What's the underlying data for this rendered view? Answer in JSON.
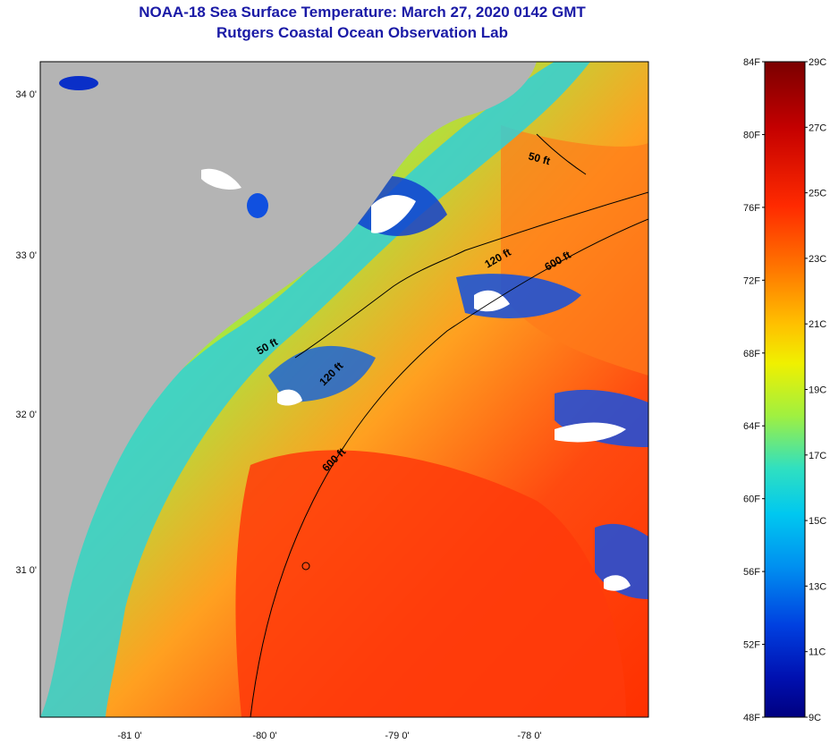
{
  "title": "NOAA-18 Sea Surface Temperature:  March 27, 2020 0142 GMT",
  "subtitle": "Rutgers Coastal Ocean Observation Lab",
  "map": {
    "lon_ticks": [
      "-81 0'",
      "-80 0'",
      "-79 0'",
      "-78 0'"
    ],
    "lat_ticks": [
      "34 0'",
      "33 0'",
      "32 0'",
      "31 0'"
    ],
    "contour_labels": [
      "50 ft",
      "120 ft",
      "600 ft",
      "50 ft",
      "120 ft",
      "600 ft"
    ],
    "land_color": "#b4b4b4",
    "cloud_color": "#ffffff"
  },
  "colorbar": {
    "fahrenheit": [
      "84F",
      "80F",
      "76F",
      "72F",
      "68F",
      "64F",
      "60F",
      "56F",
      "52F",
      "48F"
    ],
    "celsius": [
      "29C",
      "27C",
      "25C",
      "23C",
      "21C",
      "19C",
      "17C",
      "15C",
      "13C",
      "11C",
      "9C"
    ],
    "stops": [
      "#7a0000",
      "#c40000",
      "#ff2a00",
      "#ff7a00",
      "#ffc000",
      "#f0f000",
      "#a0f040",
      "#30e0c0",
      "#00c8f0",
      "#0090f0",
      "#0040e0",
      "#0010b0",
      "#000080"
    ]
  }
}
